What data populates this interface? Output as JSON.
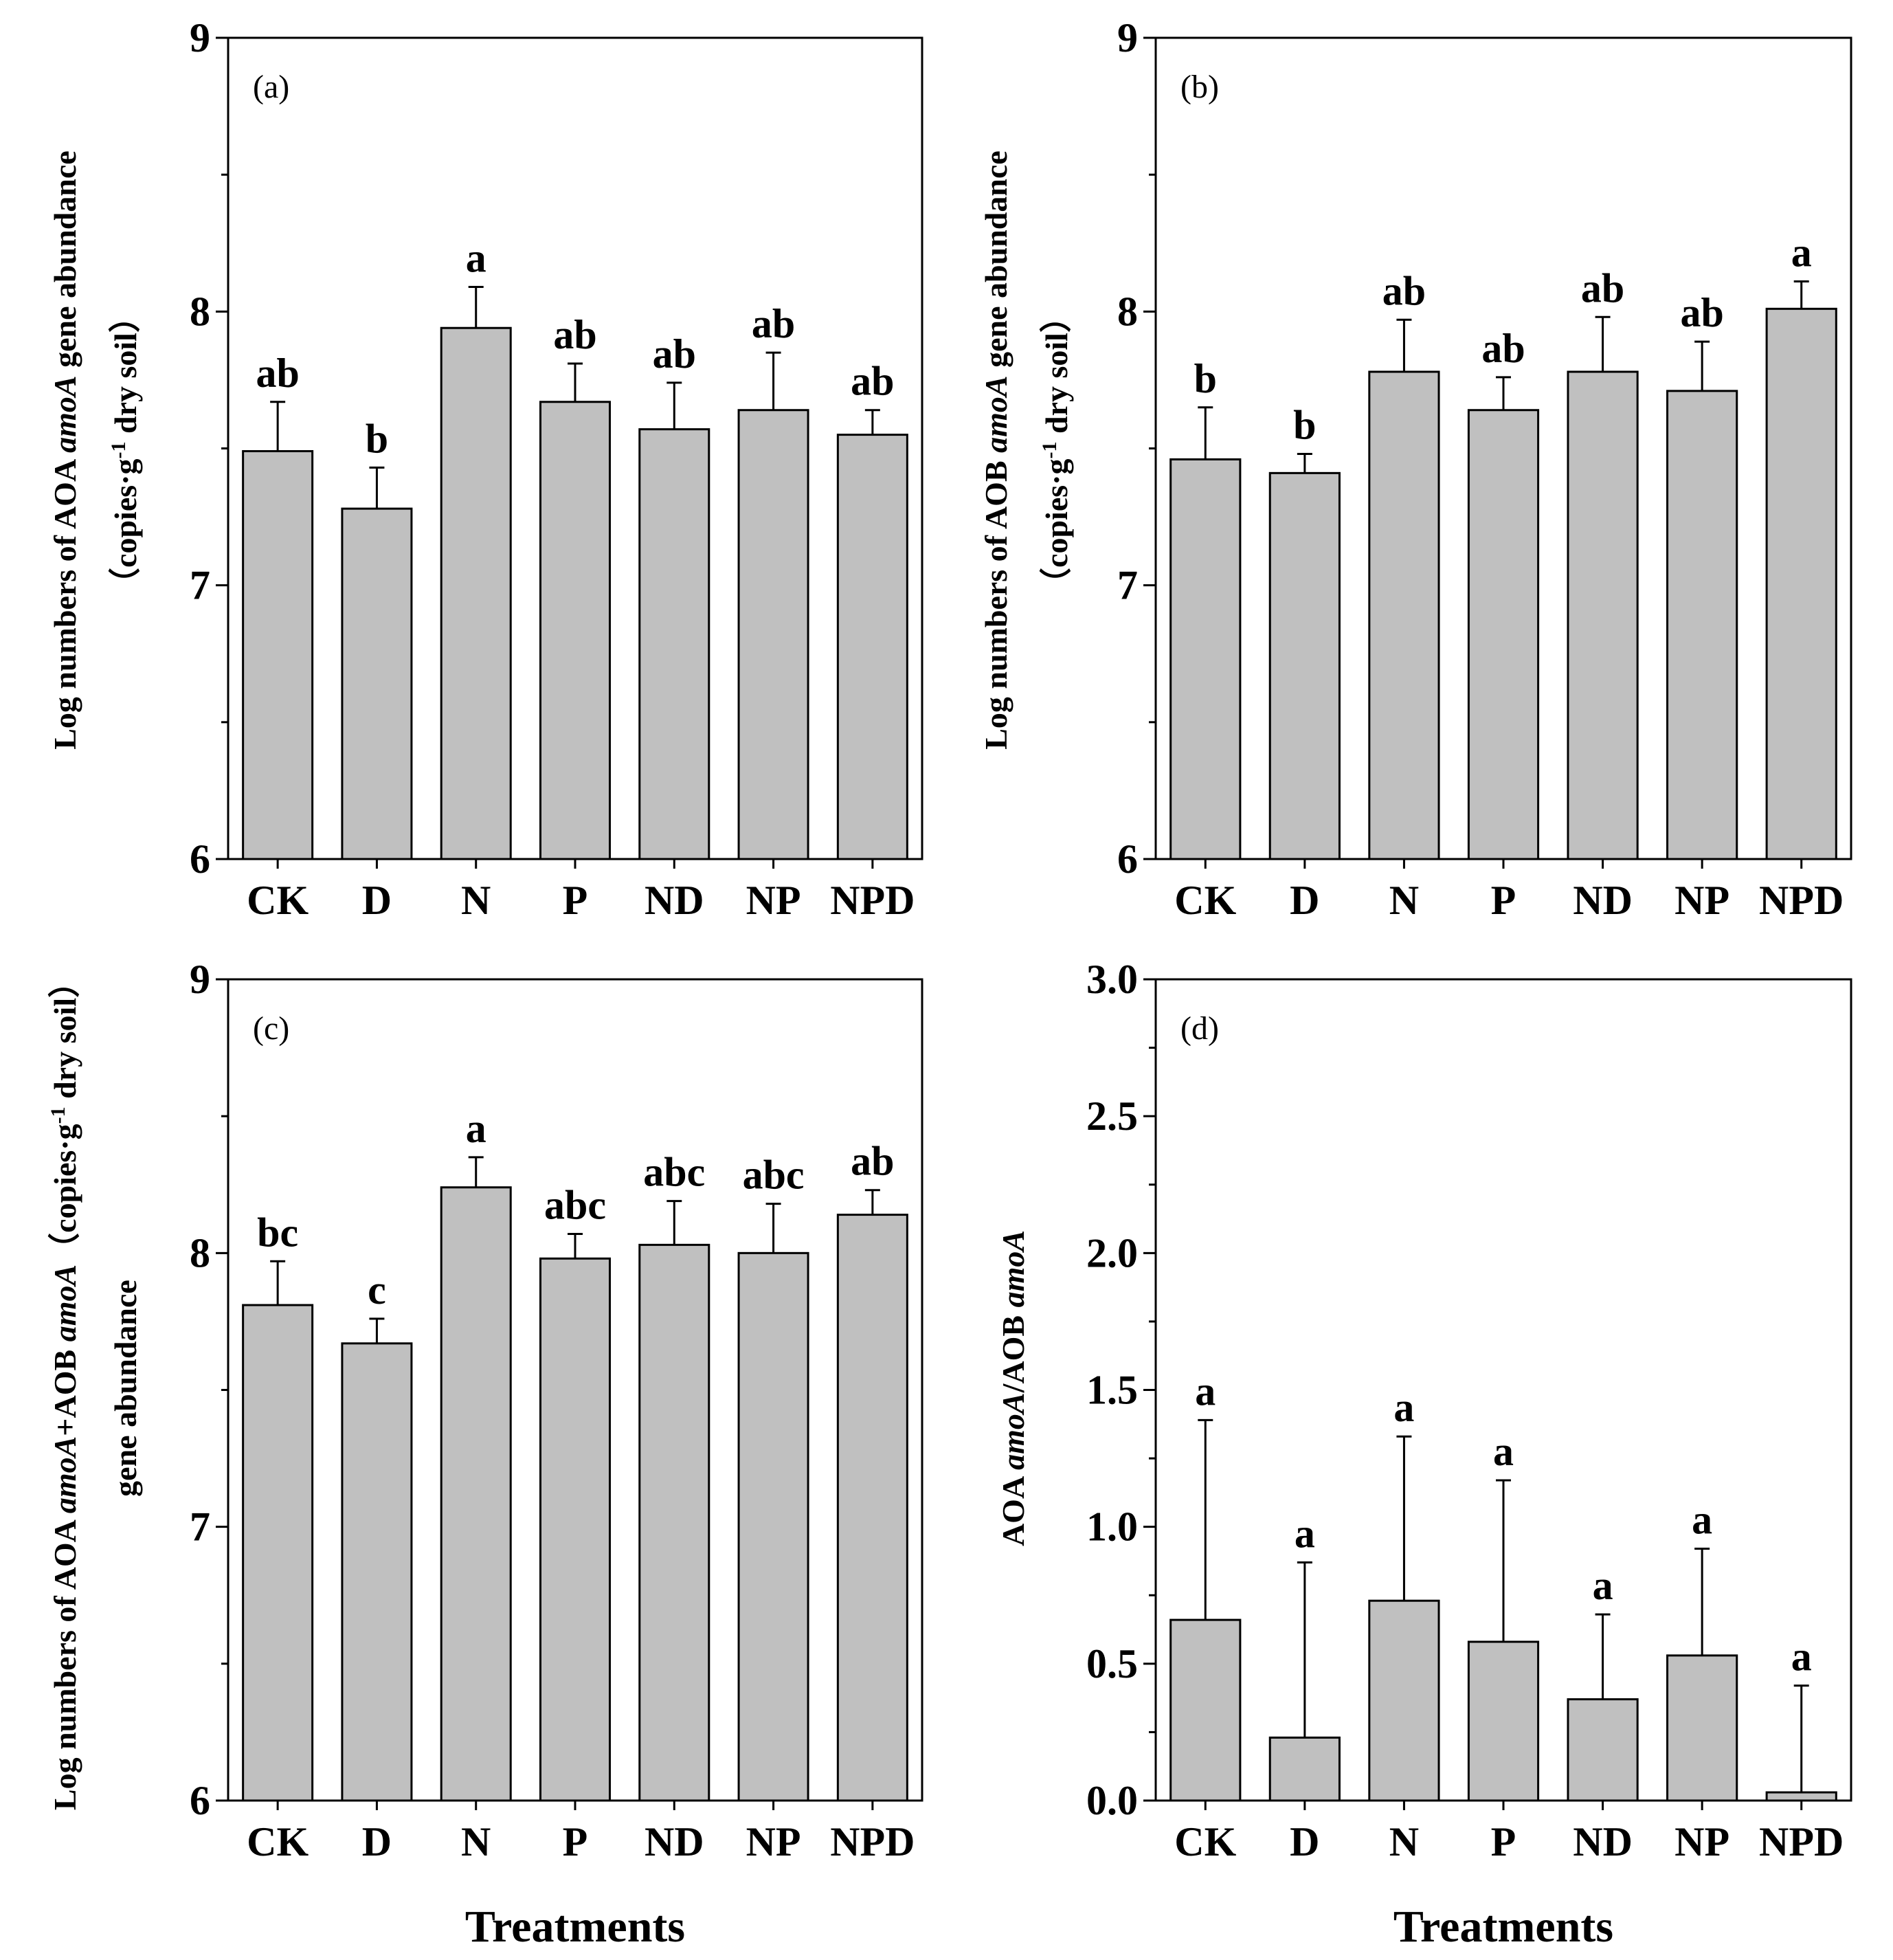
{
  "chart_data": [
    {
      "type": "bar",
      "panel_label": "(a)",
      "categories": [
        "CK",
        "D",
        "N",
        "P",
        "ND",
        "NP",
        "NPD"
      ],
      "values": [
        7.49,
        7.28,
        7.94,
        7.67,
        7.57,
        7.64,
        7.55
      ],
      "error": [
        0.18,
        0.15,
        0.15,
        0.14,
        0.17,
        0.21,
        0.09
      ],
      "significance": [
        "ab",
        "b",
        "a",
        "ab",
        "ab",
        "ab",
        "ab"
      ],
      "ylim": [
        6,
        9
      ],
      "yticks": [
        6,
        7,
        8,
        9
      ],
      "ytick_labels": [
        "6",
        "7",
        "8",
        "9"
      ],
      "ylabel": {
        "line1": [
          "Log numbers of AOA ",
          "amoA",
          " gene abundance"
        ],
        "line2": [
          "（copies·g",
          "-1",
          " dry soil）"
        ]
      },
      "xlabel": "",
      "bar_color": "#c0c0c0"
    },
    {
      "type": "bar",
      "panel_label": "(b)",
      "categories": [
        "CK",
        "D",
        "N",
        "P",
        "ND",
        "NP",
        "NPD"
      ],
      "values": [
        7.46,
        7.41,
        7.78,
        7.64,
        7.78,
        7.71,
        8.01
      ],
      "error": [
        0.19,
        0.07,
        0.19,
        0.12,
        0.2,
        0.18,
        0.1
      ],
      "significance": [
        "b",
        "b",
        "ab",
        "ab",
        "ab",
        "ab",
        "a"
      ],
      "ylim": [
        6,
        9
      ],
      "yticks": [
        6,
        7,
        8,
        9
      ],
      "ytick_labels": [
        "6",
        "7",
        "8",
        "9"
      ],
      "ylabel": {
        "line1": [
          "Log numbers of AOB ",
          "amoA",
          " gene abundance"
        ],
        "line2": [
          "（copies·g",
          "-1",
          " dry soil）"
        ]
      },
      "xlabel": "",
      "bar_color": "#c0c0c0"
    },
    {
      "type": "bar",
      "panel_label": "(c)",
      "categories": [
        "CK",
        "D",
        "N",
        "P",
        "ND",
        "NP",
        "NPD"
      ],
      "values": [
        7.81,
        7.67,
        8.24,
        7.98,
        8.03,
        8.0,
        8.14
      ],
      "error": [
        0.16,
        0.09,
        0.11,
        0.09,
        0.16,
        0.18,
        0.09
      ],
      "significance": [
        "bc",
        "c",
        "a",
        "abc",
        "abc",
        "abc",
        "ab"
      ],
      "ylim": [
        6,
        9
      ],
      "yticks": [
        6,
        7,
        8,
        9
      ],
      "ytick_labels": [
        "6",
        "7",
        "8",
        "9"
      ],
      "ylabel": {
        "line1": [
          "Log numbers of AOA ",
          "amoA",
          "+AOB ",
          "amoA",
          "（copies·g",
          "-1",
          " dry soil）"
        ],
        "line2": [
          "gene abundance"
        ]
      },
      "xlabel": "Treatments",
      "bar_color": "#c0c0c0"
    },
    {
      "type": "bar",
      "panel_label": "(d)",
      "categories": [
        "CK",
        "D",
        "N",
        "P",
        "ND",
        "NP",
        "NPD"
      ],
      "values": [
        0.66,
        0.23,
        0.73,
        0.58,
        0.37,
        0.53,
        0.03
      ],
      "error": [
        0.73,
        0.64,
        0.6,
        0.59,
        0.31,
        0.39,
        0.39
      ],
      "significance": [
        "a",
        "a",
        "a",
        "a",
        "a",
        "a",
        "a"
      ],
      "ylim": [
        0,
        3.0
      ],
      "yticks": [
        0,
        0.5,
        1.0,
        1.5,
        2.0,
        2.5,
        3.0
      ],
      "ytick_labels": [
        "0.0",
        "0.5",
        "1.0",
        "1.5",
        "2.0",
        "2.5",
        "3.0"
      ],
      "ylabel": {
        "line1": [
          "AOA ",
          "amoA",
          "/AOB ",
          "amoA"
        ],
        "line2": []
      },
      "xlabel": "Treatments",
      "bar_color": "#c0c0c0"
    }
  ]
}
